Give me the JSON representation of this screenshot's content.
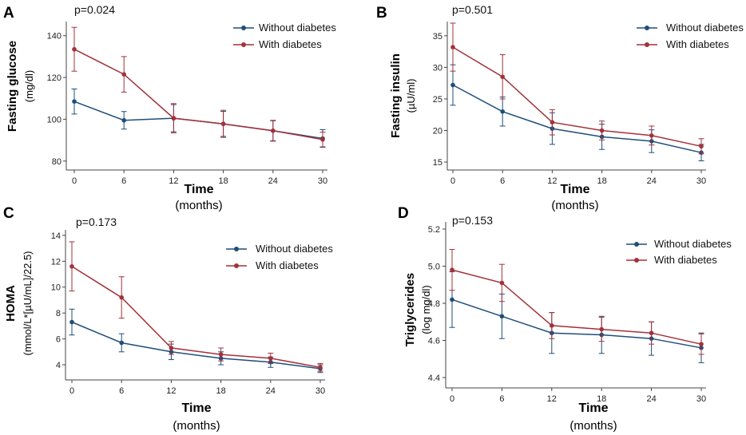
{
  "colors": {
    "without": "#1f4e79",
    "with": "#a3313a"
  },
  "chart_data": [
    {
      "panel": "A",
      "type": "line",
      "pvalue": "p=0.024",
      "ylabel": "Fasting glucose",
      "yunit": "(mg/dl)",
      "xlabel": "Time",
      "xunit": "(months)",
      "x": [
        0,
        6,
        12,
        18,
        24,
        30
      ],
      "xlim": [
        0,
        30
      ],
      "ylim": [
        78,
        146
      ],
      "yticks": [
        80,
        100,
        120,
        140
      ],
      "series": [
        {
          "name": "Without diabetes",
          "key": "without",
          "values": [
            108.5,
            99.5,
            100.5,
            97.8,
            94.5,
            90.8
          ],
          "err": [
            6,
            4.2,
            6.5,
            6,
            4.8,
            4.2
          ]
        },
        {
          "name": "With diabetes",
          "key": "with",
          "values": [
            133.5,
            121.5,
            100.5,
            97.8,
            94.5,
            90.3
          ],
          "err": [
            10.5,
            8.5,
            7,
            6.5,
            5,
            3.5
          ]
        }
      ]
    },
    {
      "panel": "B",
      "type": "line",
      "pvalue": "p=0.501",
      "ylabel": "Fasting insulin",
      "yunit": "(µU/ml)",
      "xlabel": "Time",
      "xunit": "(months)",
      "x": [
        0,
        6,
        12,
        18,
        24,
        30
      ],
      "xlim": [
        0,
        30
      ],
      "ylim": [
        14.5,
        37
      ],
      "yticks": [
        15,
        20,
        25,
        30,
        35
      ],
      "series": [
        {
          "name": "Without diabetes",
          "key": "without",
          "values": [
            27.2,
            23,
            20.3,
            19,
            18.3,
            16.5
          ],
          "err": [
            3.2,
            2.3,
            2.5,
            2,
            1.8,
            1.3
          ]
        },
        {
          "name": "With diabetes",
          "key": "with",
          "values": [
            33.2,
            28.5,
            21.3,
            20,
            19.2,
            17.5
          ],
          "err": [
            3.8,
            3.5,
            2,
            1.5,
            1.5,
            1.2
          ]
        }
      ]
    },
    {
      "panel": "C",
      "type": "line",
      "pvalue": "p=0.173",
      "ylabel": "HOMA",
      "yunit": "(mmol/L*[µU/mL]/22.5)",
      "xlabel": "Time",
      "xunit": "(months)",
      "x": [
        0,
        6,
        12,
        18,
        24,
        30
      ],
      "xlim": [
        0,
        30
      ],
      "ylim": [
        3.2,
        14.3
      ],
      "yticks": [
        4,
        6,
        8,
        10,
        12,
        14
      ],
      "series": [
        {
          "name": "Without diabetes",
          "key": "without",
          "values": [
            7.3,
            5.7,
            5,
            4.5,
            4.2,
            3.7
          ],
          "err": [
            1,
            0.7,
            0.6,
            0.5,
            0.4,
            0.3
          ]
        },
        {
          "name": "With diabetes",
          "key": "with",
          "values": [
            11.6,
            9.2,
            5.3,
            4.8,
            4.5,
            3.8
          ],
          "err": [
            1.9,
            1.6,
            0.5,
            0.5,
            0.4,
            0.3
          ]
        }
      ]
    },
    {
      "panel": "D",
      "type": "line",
      "pvalue": "p=0.153",
      "ylabel": "Triglycerides",
      "yunit": "(log mg/dl)",
      "xlabel": "Time",
      "xunit": "(months)",
      "x": [
        0,
        6,
        12,
        18,
        24,
        30
      ],
      "xlim": [
        0,
        30
      ],
      "ylim": [
        4.37,
        5.23
      ],
      "yticks": [
        "4.4",
        "4.6",
        "4.8",
        "5.0",
        "5.2"
      ],
      "series": [
        {
          "name": "Without diabetes",
          "key": "without",
          "values": [
            4.82,
            4.73,
            4.64,
            4.63,
            4.61,
            4.56
          ],
          "err": [
            0.15,
            0.12,
            0.11,
            0.1,
            0.09,
            0.08
          ]
        },
        {
          "name": "With diabetes",
          "key": "with",
          "values": [
            4.98,
            4.91,
            4.68,
            4.66,
            4.64,
            4.58
          ],
          "err": [
            0.11,
            0.1,
            0.07,
            0.065,
            0.06,
            0.055
          ]
        }
      ]
    }
  ]
}
